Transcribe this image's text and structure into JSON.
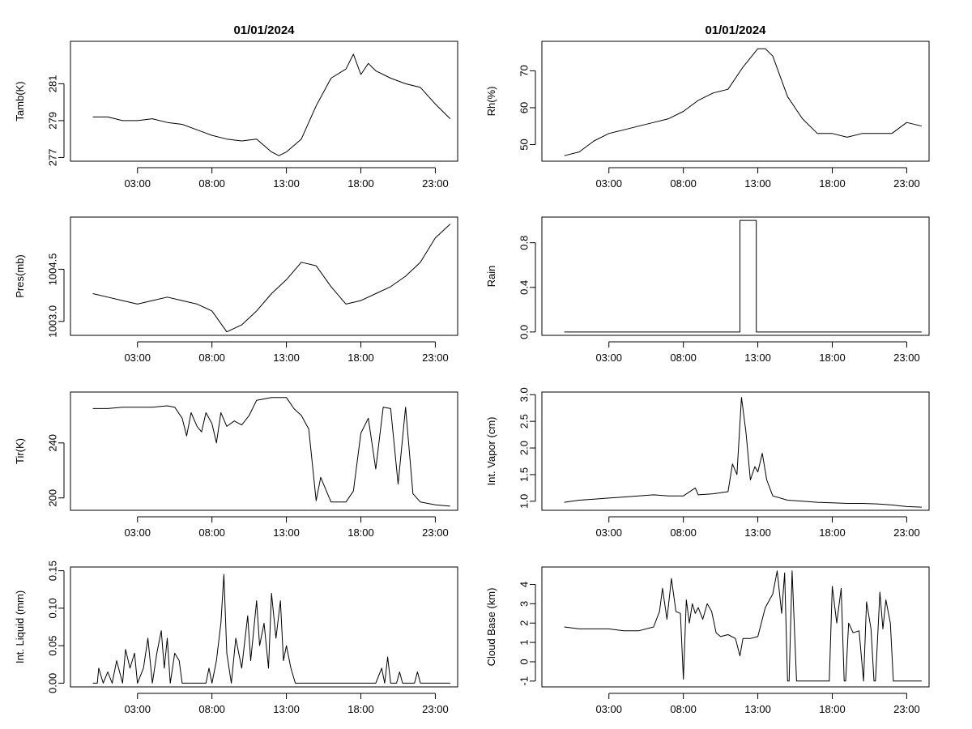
{
  "chart_data": [
    {
      "id": "tamb",
      "type": "line",
      "title": "01/01/2024",
      "ylabel": "Tamb(K)",
      "xlim": [
        -1.5,
        24.5
      ],
      "ylim": [
        276.8,
        283.3
      ],
      "xticks": [
        3,
        8,
        13,
        18,
        23
      ],
      "xtick_labels": [
        "03:00",
        "08:00",
        "13:00",
        "18:00",
        "23:00"
      ],
      "yticks": [
        277,
        279,
        281
      ],
      "ytick_labels": [
        "277",
        "279",
        "281"
      ],
      "x": [
        0,
        1,
        2,
        3,
        4,
        5,
        6,
        7,
        8,
        9,
        10,
        11,
        12,
        12.5,
        13,
        14,
        15,
        16,
        17,
        17.5,
        18,
        18.5,
        19,
        20,
        21,
        22,
        23,
        24
      ],
      "y": [
        279.2,
        279.2,
        279.0,
        279.0,
        279.1,
        278.9,
        278.8,
        278.5,
        278.2,
        278.0,
        277.9,
        278.0,
        277.3,
        277.1,
        277.3,
        278.0,
        279.8,
        281.3,
        281.8,
        282.6,
        281.5,
        282.1,
        281.7,
        281.3,
        281.0,
        280.8,
        279.9,
        279.1
      ]
    },
    {
      "id": "rh",
      "type": "line",
      "title": "01/01/2024",
      "ylabel": "Rh(%)",
      "xlim": [
        -1.5,
        24.5
      ],
      "ylim": [
        45.5,
        78
      ],
      "xticks": [
        3,
        8,
        13,
        18,
        23
      ],
      "xtick_labels": [
        "03:00",
        "08:00",
        "13:00",
        "18:00",
        "23:00"
      ],
      "yticks": [
        50,
        60,
        70
      ],
      "ytick_labels": [
        "50",
        "60",
        "70"
      ],
      "x": [
        0,
        1,
        2,
        3,
        4,
        5,
        6,
        7,
        8,
        9,
        10,
        11,
        12,
        13,
        13.5,
        14,
        15,
        16,
        17,
        18,
        19,
        20,
        21,
        22,
        23,
        24
      ],
      "y": [
        47,
        48,
        51,
        53,
        54,
        55,
        56,
        57,
        59,
        62,
        64,
        65,
        71,
        76,
        76,
        74,
        63,
        57,
        53,
        53,
        52,
        53,
        53,
        53,
        56,
        55
      ]
    },
    {
      "id": "pres",
      "type": "line",
      "title": "",
      "ylabel": "Pres(mb)",
      "xlim": [
        -1.5,
        24.5
      ],
      "ylim": [
        1002.6,
        1006.0
      ],
      "xticks": [
        3,
        8,
        13,
        18,
        23
      ],
      "xtick_labels": [
        "03:00",
        "08:00",
        "13:00",
        "18:00",
        "23:00"
      ],
      "yticks": [
        1003.0,
        1004.5
      ],
      "ytick_labels": [
        "1003.0",
        "1004.5"
      ],
      "x": [
        0,
        1,
        2,
        3,
        4,
        5,
        6,
        7,
        8,
        9,
        10,
        11,
        12,
        13,
        14,
        15,
        16,
        17,
        18,
        19,
        20,
        21,
        22,
        23,
        24
      ],
      "y": [
        1003.8,
        1003.7,
        1003.6,
        1003.5,
        1003.6,
        1003.7,
        1003.6,
        1003.5,
        1003.3,
        1002.7,
        1002.9,
        1003.3,
        1003.8,
        1004.2,
        1004.7,
        1004.6,
        1004.0,
        1003.5,
        1003.6,
        1003.8,
        1004.0,
        1004.3,
        1004.7,
        1005.4,
        1005.8
      ]
    },
    {
      "id": "rain",
      "type": "line",
      "title": "",
      "ylabel": "Rain",
      "xlim": [
        -1.5,
        24.5
      ],
      "ylim": [
        -0.03,
        1.03
      ],
      "xticks": [
        3,
        8,
        13,
        18,
        23
      ],
      "xtick_labels": [
        "03:00",
        "08:00",
        "13:00",
        "18:00",
        "23:00"
      ],
      "yticks": [
        0.0,
        0.4,
        0.8
      ],
      "ytick_labels": [
        "0.0",
        "0.4",
        "0.8"
      ],
      "x": [
        0,
        11.8,
        11.8,
        12.9,
        12.9,
        24
      ],
      "y": [
        0,
        0,
        1,
        1,
        0,
        0
      ]
    },
    {
      "id": "tir",
      "type": "line",
      "title": "",
      "ylabel": "Tir(K)",
      "xlim": [
        -1.5,
        24.5
      ],
      "ylim": [
        191,
        277
      ],
      "xticks": [
        3,
        8,
        13,
        18,
        23
      ],
      "xtick_labels": [
        "03:00",
        "08:00",
        "13:00",
        "18:00",
        "23:00"
      ],
      "yticks": [
        200,
        240
      ],
      "ytick_labels": [
        "200",
        "240"
      ],
      "x": [
        0,
        1,
        2,
        3,
        4,
        5,
        5.5,
        6,
        6.3,
        6.6,
        7,
        7.3,
        7.6,
        8,
        8.3,
        8.6,
        9,
        9.5,
        10,
        10.5,
        11,
        12,
        13,
        13.5,
        14,
        14.5,
        15,
        15.3,
        16,
        17,
        17.5,
        18,
        18.5,
        19,
        19.5,
        20,
        20.5,
        21,
        21.5,
        22,
        23,
        24
      ],
      "y": [
        265,
        265,
        266,
        266,
        266,
        267,
        266,
        258,
        245,
        262,
        252,
        248,
        262,
        254,
        240,
        262,
        252,
        256,
        253,
        260,
        271,
        273,
        273,
        265,
        260,
        250,
        198,
        215,
        197,
        197,
        205,
        247,
        258,
        221,
        266,
        265,
        210,
        266,
        203,
        197,
        195,
        194
      ]
    },
    {
      "id": "vapor",
      "type": "line",
      "title": "",
      "ylabel": "Int. Vapor (cm)",
      "xlim": [
        -1.5,
        24.5
      ],
      "ylim": [
        0.83,
        3.05
      ],
      "xticks": [
        3,
        8,
        13,
        18,
        23
      ],
      "xtick_labels": [
        "03:00",
        "08:00",
        "13:00",
        "18:00",
        "23:00"
      ],
      "yticks": [
        1.0,
        1.5,
        2.0,
        2.5,
        3.0
      ],
      "ytick_labels": [
        "1.0",
        "1.5",
        "2.0",
        "2.5",
        "3.0"
      ],
      "x": [
        0,
        1,
        2,
        3,
        4,
        5,
        6,
        7,
        8,
        8.8,
        9,
        10,
        11,
        11.3,
        11.6,
        11.9,
        12.2,
        12.5,
        12.8,
        13,
        13.3,
        13.6,
        14,
        15,
        16,
        17,
        18,
        19,
        20,
        21,
        22,
        23,
        24
      ],
      "y": [
        0.98,
        1.02,
        1.04,
        1.06,
        1.08,
        1.1,
        1.12,
        1.1,
        1.1,
        1.25,
        1.12,
        1.14,
        1.18,
        1.7,
        1.5,
        2.95,
        2.3,
        1.4,
        1.65,
        1.55,
        1.9,
        1.4,
        1.1,
        1.02,
        1.0,
        0.98,
        0.97,
        0.96,
        0.96,
        0.95,
        0.93,
        0.9,
        0.89
      ]
    },
    {
      "id": "liquid",
      "type": "line",
      "title": "",
      "ylabel": "Int. Liquid (mm)",
      "xlim": [
        -1.5,
        24.5
      ],
      "ylim": [
        -0.005,
        0.155
      ],
      "xticks": [
        3,
        8,
        13,
        18,
        23
      ],
      "xtick_labels": [
        "03:00",
        "08:00",
        "13:00",
        "18:00",
        "23:00"
      ],
      "yticks": [
        0.0,
        0.05,
        0.1,
        0.15
      ],
      "ytick_labels": [
        "0.00",
        "0.05",
        "0.10",
        "0.15"
      ],
      "x": [
        0,
        0.3,
        0.4,
        0.7,
        1,
        1.3,
        1.6,
        2,
        2.2,
        2.5,
        2.8,
        3,
        3.4,
        3.7,
        4,
        4.3,
        4.6,
        4.8,
        5,
        5.2,
        5.5,
        5.8,
        6,
        6.5,
        7,
        7.6,
        7.8,
        8,
        8.3,
        8.6,
        8.8,
        9,
        9.3,
        9.6,
        10,
        10.4,
        10.6,
        11,
        11.2,
        11.5,
        11.8,
        12,
        12.3,
        12.6,
        12.8,
        13,
        13.3,
        13.6,
        14,
        15,
        16,
        17,
        18,
        19,
        19.4,
        19.6,
        19.8,
        20,
        20.4,
        20.6,
        20.8,
        21,
        21.6,
        21.8,
        22,
        23,
        24
      ],
      "y": [
        0,
        0,
        0.02,
        0,
        0.015,
        0,
        0.03,
        0,
        0.045,
        0.02,
        0.04,
        0,
        0.02,
        0.06,
        0,
        0.04,
        0.07,
        0.02,
        0.06,
        0,
        0.04,
        0.03,
        0,
        0,
        0,
        0,
        0.02,
        0,
        0.03,
        0.08,
        0.145,
        0.04,
        0,
        0.06,
        0.02,
        0.09,
        0.03,
        0.11,
        0.05,
        0.08,
        0.02,
        0.12,
        0.06,
        0.11,
        0.03,
        0.05,
        0.02,
        0,
        0,
        0,
        0,
        0,
        0,
        0,
        0.02,
        0,
        0.035,
        0,
        0,
        0.015,
        0,
        0,
        0,
        0.015,
        0,
        0,
        0
      ]
    },
    {
      "id": "cloudbase",
      "type": "line",
      "title": "",
      "ylabel": "Cloud Base (km)",
      "xlim": [
        -1.5,
        24.5
      ],
      "ylim": [
        -1.3,
        4.9
      ],
      "xticks": [
        3,
        8,
        13,
        18,
        23
      ],
      "xtick_labels": [
        "03:00",
        "08:00",
        "13:00",
        "18:00",
        "23:00"
      ],
      "yticks": [
        -1,
        0,
        1,
        2,
        3,
        4
      ],
      "ytick_labels": [
        "-1",
        "0",
        "1",
        "2",
        "3",
        "4"
      ],
      "x": [
        0,
        1,
        2,
        3,
        4,
        5,
        6,
        6.4,
        6.6,
        6.9,
        7.2,
        7.5,
        7.8,
        8,
        8.2,
        8.4,
        8.6,
        8.8,
        9,
        9.3,
        9.6,
        9.9,
        10.2,
        10.5,
        11,
        11.5,
        11.8,
        12,
        12.5,
        13,
        13.5,
        14,
        14.3,
        14.6,
        14.8,
        15,
        15.1,
        15.3,
        15.6,
        16,
        17,
        17.8,
        18,
        18.3,
        18.6,
        18.8,
        18.9,
        19.1,
        19.4,
        19.8,
        20.1,
        20.3,
        20.6,
        20.8,
        20.9,
        21.2,
        21.4,
        21.6,
        21.9,
        22.1,
        23,
        24
      ],
      "y": [
        1.8,
        1.7,
        1.7,
        1.7,
        1.6,
        1.6,
        1.8,
        2.6,
        3.8,
        2.2,
        4.3,
        2.6,
        2.5,
        -0.9,
        3.2,
        2.0,
        3.0,
        2.5,
        2.8,
        2.2,
        3.0,
        2.6,
        1.5,
        1.3,
        1.4,
        1.2,
        0.3,
        1.2,
        1.2,
        1.3,
        2.8,
        3.5,
        4.7,
        2.5,
        4.6,
        -1.0,
        -1.0,
        4.7,
        -1.0,
        -1.0,
        -1.0,
        -1.0,
        3.9,
        2.0,
        3.8,
        -1.0,
        -1.0,
        2.0,
        1.5,
        1.6,
        -1.0,
        3.1,
        1.7,
        -1.0,
        -1.0,
        3.6,
        1.7,
        3.2,
        2.0,
        -1.0,
        -1.0,
        -1.0
      ]
    }
  ]
}
